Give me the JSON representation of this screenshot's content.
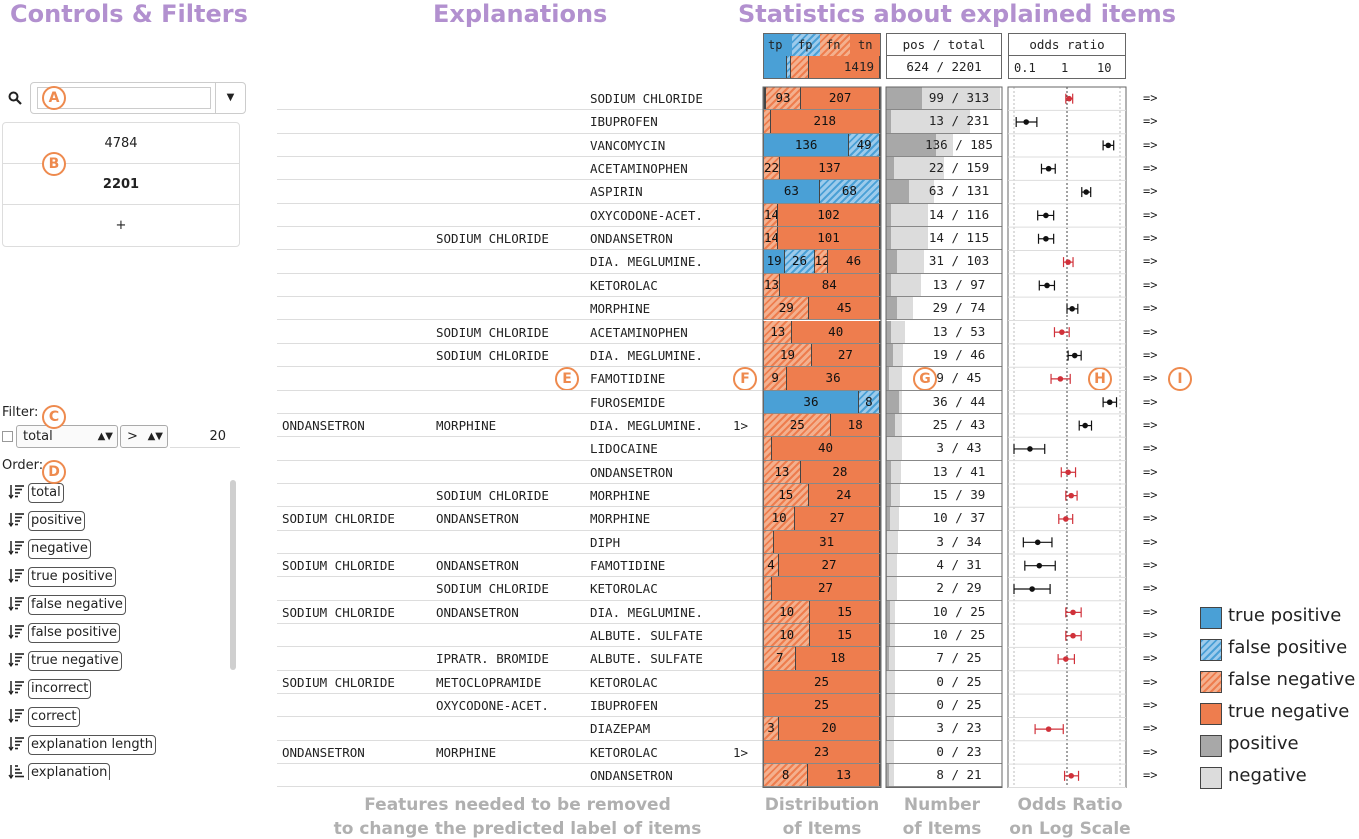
{
  "titles": {
    "controls": "Controls & Filters",
    "explanations": "Explanations",
    "statistics": "Statistics about explained items"
  },
  "markers": [
    "A",
    "B",
    "C",
    "D",
    "E",
    "F",
    "G",
    "H",
    "I"
  ],
  "search": {
    "icon": "search-icon",
    "value": "",
    "placeholder": ""
  },
  "counts": [
    "4784",
    "2201",
    "+"
  ],
  "filter": {
    "label": "Filter:",
    "field": "total",
    "op": ">",
    "value": "20"
  },
  "order": {
    "label": "Order:",
    "items": [
      "total",
      "positive",
      "negative",
      "true positive",
      "false negative",
      "false positive",
      "true negative",
      "incorrect",
      "correct",
      "explanation length",
      "explanation"
    ]
  },
  "headers": {
    "dist_labels": [
      "tp",
      "fp",
      "fn",
      "tn"
    ],
    "dist_total": "1419",
    "dist_total_fracs": {
      "tp": 0.2,
      "fp": 0.03,
      "fn": 0.16,
      "tn": 0.61
    },
    "num_header": "pos / total",
    "num_total": "624 / 2201",
    "odds_header": "odds ratio",
    "odds_ticks": [
      "0.1",
      "1",
      "10"
    ]
  },
  "rows": [
    {
      "c1": "",
      "c2": "",
      "c3": "SODIUM CHLORIDE",
      "flag": "",
      "tp": 2,
      "fp": 3,
      "fn": 93,
      "tn": 207,
      "pos": 99,
      "total": 313,
      "or": 1.1,
      "lo": 0.95,
      "hi": 1.28,
      "red": true
    },
    {
      "c1": "",
      "c2": "",
      "c3": "IBUPROFEN",
      "flag": "",
      "tp": 0,
      "fp": 0,
      "fn": 13,
      "tn": 218,
      "pos": 13,
      "total": 231,
      "or": 0.17,
      "lo": 0.11,
      "hi": 0.27,
      "red": false
    },
    {
      "c1": "",
      "c2": "",
      "c3": "VANCOMYCIN",
      "flag": "",
      "tp": 136,
      "fp": 49,
      "fn": 0,
      "tn": 0,
      "pos": 136,
      "total": 185,
      "or": 6.0,
      "lo": 4.8,
      "hi": 7.6,
      "red": false
    },
    {
      "c1": "",
      "c2": "",
      "c3": "ACETAMINOPHEN",
      "flag": "",
      "tp": 0,
      "fp": 0,
      "fn": 22,
      "tn": 137,
      "pos": 22,
      "total": 159,
      "or": 0.45,
      "lo": 0.33,
      "hi": 0.6,
      "red": false
    },
    {
      "c1": "",
      "c2": "",
      "c3": "ASPIRIN",
      "flag": "",
      "tp": 63,
      "fp": 68,
      "fn": 0,
      "tn": 0,
      "pos": 63,
      "total": 131,
      "or": 2.3,
      "lo": 1.9,
      "hi": 2.8,
      "red": false
    },
    {
      "c1": "",
      "c2": "",
      "c3": "OXYCODONE-ACET.",
      "flag": "",
      "tp": 0,
      "fp": 0,
      "fn": 14,
      "tn": 102,
      "pos": 14,
      "total": 116,
      "or": 0.4,
      "lo": 0.28,
      "hi": 0.56,
      "red": false
    },
    {
      "c1": "",
      "c2": "SODIUM CHLORIDE",
      "c3": "ONDANSETRON",
      "flag": "",
      "tp": 0,
      "fp": 0,
      "fn": 14,
      "tn": 101,
      "pos": 14,
      "total": 115,
      "or": 0.4,
      "lo": 0.29,
      "hi": 0.56,
      "red": false
    },
    {
      "c1": "",
      "c2": "",
      "c3": "DIA. MEGLUMINE.",
      "flag": "",
      "tp": 19,
      "fp": 26,
      "fn": 12,
      "tn": 46,
      "pos": 31,
      "total": 103,
      "or": 1.05,
      "lo": 0.86,
      "hi": 1.3,
      "red": true
    },
    {
      "c1": "",
      "c2": "",
      "c3": "KETOROLAC",
      "flag": "",
      "tp": 0,
      "fp": 0,
      "fn": 13,
      "tn": 84,
      "pos": 13,
      "total": 97,
      "or": 0.42,
      "lo": 0.3,
      "hi": 0.58,
      "red": false
    },
    {
      "c1": "",
      "c2": "",
      "c3": "MORPHINE",
      "flag": "",
      "tp": 0,
      "fp": 0,
      "fn": 29,
      "tn": 45,
      "pos": 29,
      "total": 74,
      "or": 1.25,
      "lo": 1.0,
      "hi": 1.6,
      "red": false
    },
    {
      "c1": "",
      "c2": "SODIUM CHLORIDE",
      "c3": "ACETAMINOPHEN",
      "flag": "",
      "tp": 0,
      "fp": 0,
      "fn": 13,
      "tn": 40,
      "pos": 13,
      "total": 53,
      "or": 0.8,
      "lo": 0.58,
      "hi": 1.1,
      "red": true
    },
    {
      "c1": "",
      "c2": "SODIUM CHLORIDE",
      "c3": "DIA. MEGLUMINE.",
      "flag": "",
      "tp": 0,
      "fp": 0,
      "fn": 19,
      "tn": 27,
      "pos": 19,
      "total": 46,
      "or": 1.4,
      "lo": 1.05,
      "hi": 1.85,
      "red": false
    },
    {
      "c1": "",
      "c2": "",
      "c3": "FAMOTIDINE",
      "flag": "",
      "tp": 0,
      "fp": 0,
      "fn": 9,
      "tn": 36,
      "pos": 9,
      "total": 45,
      "or": 0.75,
      "lo": 0.5,
      "hi": 1.15,
      "red": true
    },
    {
      "c1": "",
      "c2": "",
      "c3": "FUROSEMIDE",
      "flag": "",
      "tp": 36,
      "fp": 8,
      "fn": 0,
      "tn": 0,
      "pos": 36,
      "total": 44,
      "or": 6.4,
      "lo": 4.8,
      "hi": 8.6,
      "red": false
    },
    {
      "c1": "ONDANSETRON",
      "c2": "MORPHINE",
      "c3": "DIA. MEGLUMINE.",
      "flag": "1>",
      "tp": 0,
      "fp": 0,
      "fn": 25,
      "tn": 18,
      "pos": 25,
      "total": 43,
      "or": 2.2,
      "lo": 1.7,
      "hi": 2.9,
      "red": false
    },
    {
      "c1": "",
      "c2": "",
      "c3": "LIDOCAINE",
      "flag": "",
      "tp": 0,
      "fp": 0,
      "fn": 3,
      "tn": 40,
      "pos": 3,
      "total": 43,
      "or": 0.2,
      "lo": 0.1,
      "hi": 0.38,
      "red": false
    },
    {
      "c1": "",
      "c2": "",
      "c3": "ONDANSETRON",
      "flag": "",
      "tp": 0,
      "fp": 0,
      "fn": 13,
      "tn": 28,
      "pos": 13,
      "total": 41,
      "or": 1.05,
      "lo": 0.78,
      "hi": 1.45,
      "red": true
    },
    {
      "c1": "",
      "c2": "SODIUM CHLORIDE",
      "c3": "MORPHINE",
      "flag": "",
      "tp": 0,
      "fp": 0,
      "fn": 15,
      "tn": 24,
      "pos": 15,
      "total": 39,
      "or": 1.2,
      "lo": 0.95,
      "hi": 1.55,
      "red": true
    },
    {
      "c1": "SODIUM CHLORIDE",
      "c2": "ONDANSETRON",
      "c3": "MORPHINE",
      "flag": "",
      "tp": 0,
      "fp": 0,
      "fn": 10,
      "tn": 27,
      "pos": 10,
      "total": 37,
      "or": 0.95,
      "lo": 0.7,
      "hi": 1.28,
      "red": true
    },
    {
      "c1": "",
      "c2": "",
      "c3": "DIPH",
      "flag": "",
      "tp": 0,
      "fp": 0,
      "fn": 3,
      "tn": 31,
      "pos": 3,
      "total": 34,
      "or": 0.28,
      "lo": 0.15,
      "hi": 0.52,
      "red": false
    },
    {
      "c1": "SODIUM CHLORIDE",
      "c2": "ONDANSETRON",
      "c3": "FAMOTIDINE",
      "flag": "",
      "tp": 0,
      "fp": 0,
      "fn": 4,
      "tn": 27,
      "pos": 4,
      "total": 31,
      "or": 0.3,
      "lo": 0.16,
      "hi": 0.6,
      "red": false
    },
    {
      "c1": "",
      "c2": "SODIUM CHLORIDE",
      "c3": "KETOROLAC",
      "flag": "",
      "tp": 0,
      "fp": 0,
      "fn": 2,
      "tn": 27,
      "pos": 2,
      "total": 29,
      "or": 0.22,
      "lo": 0.1,
      "hi": 0.48,
      "red": false
    },
    {
      "c1": "SODIUM CHLORIDE",
      "c2": "ONDANSETRON",
      "c3": "DIA. MEGLUMINE.",
      "flag": "",
      "tp": 0,
      "fp": 0,
      "fn": 10,
      "tn": 15,
      "pos": 10,
      "total": 25,
      "or": 1.3,
      "lo": 0.95,
      "hi": 1.85,
      "red": true
    },
    {
      "c1": "",
      "c2": "",
      "c3": "ALBUTE. SULFATE",
      "flag": "",
      "tp": 0,
      "fp": 0,
      "fn": 10,
      "tn": 15,
      "pos": 10,
      "total": 25,
      "or": 1.3,
      "lo": 0.95,
      "hi": 1.85,
      "red": true
    },
    {
      "c1": "",
      "c2": "IPRATR. BROMIDE",
      "c3": "ALBUTE. SULFATE",
      "flag": "",
      "tp": 0,
      "fp": 0,
      "fn": 7,
      "tn": 18,
      "pos": 7,
      "total": 25,
      "or": 0.95,
      "lo": 0.68,
      "hi": 1.38,
      "red": true
    },
    {
      "c1": "SODIUM CHLORIDE",
      "c2": "METOCLOPRAMIDE",
      "c3": "KETOROLAC",
      "flag": "",
      "tp": 0,
      "fp": 0,
      "fn": 0,
      "tn": 25,
      "pos": 0,
      "total": 25,
      "or": null,
      "lo": null,
      "hi": null,
      "red": false
    },
    {
      "c1": "",
      "c2": "OXYCODONE-ACET.",
      "c3": "IBUPROFEN",
      "flag": "",
      "tp": 0,
      "fp": 0,
      "fn": 0,
      "tn": 25,
      "pos": 0,
      "total": 25,
      "or": null,
      "lo": null,
      "hi": null,
      "red": false
    },
    {
      "c1": "",
      "c2": "",
      "c3": "DIAZEPAM",
      "flag": "",
      "tp": 0,
      "fp": 0,
      "fn": 3,
      "tn": 20,
      "pos": 3,
      "total": 23,
      "or": 0.45,
      "lo": 0.25,
      "hi": 0.85,
      "red": true
    },
    {
      "c1": "ONDANSETRON",
      "c2": "MORPHINE",
      "c3": "KETOROLAC",
      "flag": "1>",
      "tp": 0,
      "fp": 0,
      "fn": 0,
      "tn": 23,
      "pos": 0,
      "total": 23,
      "or": null,
      "lo": null,
      "hi": null,
      "red": false
    },
    {
      "c1": "",
      "c2": "",
      "c3": "ONDANSETRON",
      "flag": "",
      "tp": 0,
      "fp": 0,
      "fn": 8,
      "tn": 13,
      "pos": 8,
      "total": 21,
      "or": 1.2,
      "lo": 0.9,
      "hi": 1.65,
      "red": true
    }
  ],
  "arrow": "=>",
  "legend": [
    "true positive",
    "false positive",
    "false negative",
    "true negative",
    "positive",
    "negative"
  ],
  "captions": {
    "features": [
      "Features needed to be removed",
      "to change the predicted label of items"
    ],
    "distribution": [
      "Distribution",
      "of Items"
    ],
    "number": [
      "Number",
      "of Items"
    ],
    "odds": [
      "Odds Ratio",
      "on Log Scale"
    ]
  },
  "colors": {
    "tp": "#4aa0d6",
    "tn": "#ee7d4e",
    "positive": "#a8a8a8",
    "negative": "#dcdcdc",
    "accent": "#b290cf",
    "marker": "#ee8a4e",
    "ci_red": "#d0313a"
  }
}
